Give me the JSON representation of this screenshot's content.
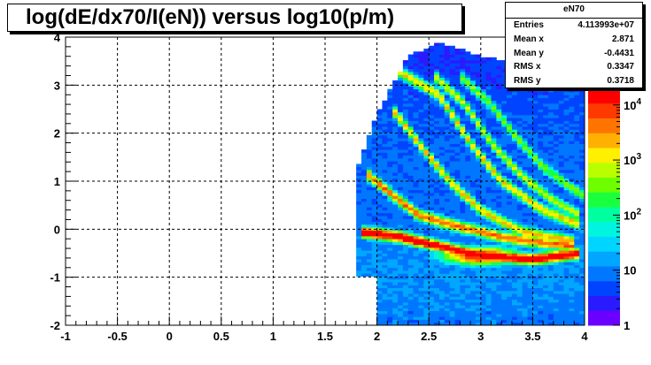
{
  "chart_data": {
    "type": "heatmap",
    "title": "log(dE/dx70/I(eN)) versus log10(p/m)",
    "xlabel": "",
    "ylabel": "",
    "xlim": [
      -1,
      4
    ],
    "ylim": [
      -2,
      4
    ],
    "x_ticks": [
      "-1",
      "-0.5",
      "0",
      "0.5",
      "1",
      "1.5",
      "2",
      "2.5",
      "3",
      "3.5",
      "4"
    ],
    "y_ticks": [
      "-2",
      "-1",
      "0",
      "1",
      "2",
      "3",
      "4"
    ],
    "grid": true,
    "color_scale": "log",
    "z_range": [
      1,
      20000
    ],
    "colorbar_ticks": [
      {
        "value": 1,
        "base": "1",
        "exp": ""
      },
      {
        "value": 10,
        "base": "10",
        "exp": ""
      },
      {
        "value": 100,
        "base": "10",
        "exp": "2"
      },
      {
        "value": 1000,
        "base": "10",
        "exp": "3"
      },
      {
        "value": 10000,
        "base": "10",
        "exp": "4"
      }
    ],
    "stats": {
      "name": "eN70",
      "entries": "4.113993e+07",
      "mean_x": "2.871",
      "mean_y": "-0.4431",
      "rms_x": "0.3347",
      "rms_y": "0.3718"
    },
    "bands": [
      {
        "x": [
          1.85,
          2.2,
          2.6,
          3.0,
          3.5,
          3.95
        ],
        "y": [
          -0.05,
          -0.15,
          -0.35,
          -0.55,
          -0.62,
          -0.5
        ],
        "peak": 4.3
      },
      {
        "x": [
          1.88,
          2.1,
          2.4,
          2.8,
          3.3,
          3.9
        ],
        "y": [
          1.2,
          0.8,
          0.3,
          0.05,
          -0.2,
          -0.35
        ],
        "peak": 3.4
      },
      {
        "x": [
          2.15,
          2.4,
          2.7,
          3.0,
          3.4,
          3.9
        ],
        "y": [
          2.5,
          1.8,
          1.0,
          0.4,
          -0.05,
          -0.25
        ],
        "peak": 3.0
      },
      {
        "x": [
          2.2,
          2.6,
          2.9,
          3.2,
          3.6,
          3.95
        ],
        "y": [
          3.3,
          2.8,
          1.8,
          1.0,
          0.4,
          0.1
        ],
        "peak": 2.9
      },
      {
        "x": [
          2.55,
          2.85,
          3.1,
          3.4,
          3.7,
          3.95
        ],
        "y": [
          3.2,
          2.6,
          1.8,
          1.1,
          0.6,
          0.3
        ],
        "peak": 2.6
      },
      {
        "x": [
          2.8,
          3.1,
          3.35,
          3.6,
          3.85,
          4.0
        ],
        "y": [
          3.2,
          2.6,
          1.9,
          1.3,
          0.9,
          0.7
        ],
        "peak": 2.3
      }
    ]
  },
  "palette": [
    "#6a00ff",
    "#2a1bff",
    "#0044ff",
    "#0077ff",
    "#00a6ff",
    "#00d5ff",
    "#00f5e0",
    "#00ff9f",
    "#1aff3d",
    "#6dff00",
    "#b9ff00",
    "#ffef00",
    "#ffb000",
    "#ff7400",
    "#ff3a00",
    "#ff0000"
  ]
}
